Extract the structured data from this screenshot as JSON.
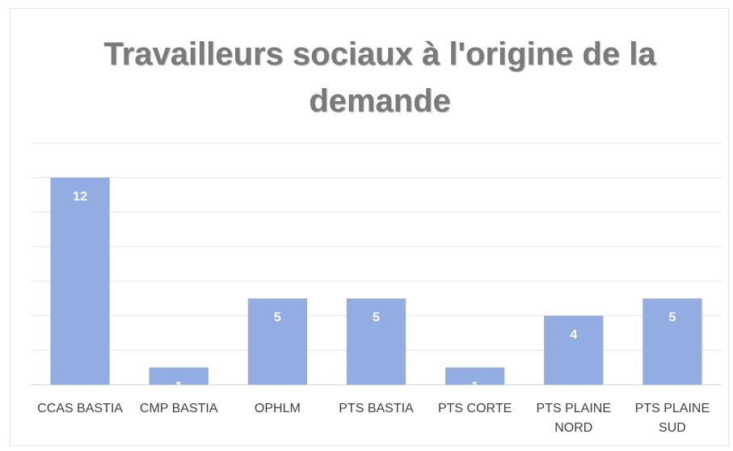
{
  "chart_data": {
    "type": "bar",
    "title": "Travailleurs sociaux à l'origine de la demande",
    "categories": [
      "CCAS BASTIA",
      "CMP BASTIA",
      "OPHLM",
      "PTS BASTIA",
      "PTS CORTE",
      "PTS PLAINE NORD",
      "PTS PLAINE SUD"
    ],
    "values": [
      12,
      1,
      5,
      5,
      1,
      4,
      5
    ],
    "color": "#93ade3",
    "ylim": [
      0,
      14
    ],
    "yticks": [
      0,
      2,
      4,
      6,
      8,
      10,
      12,
      14
    ],
    "grid": true,
    "tick_labels": false,
    "value_labels_shown": true
  }
}
